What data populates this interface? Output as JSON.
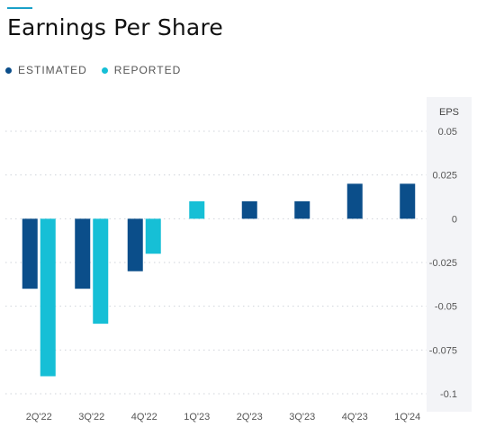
{
  "header": {
    "title": "Earnings Per Share"
  },
  "legend": {
    "items": [
      {
        "label": "ESTIMATED",
        "color": "#0b4e8a"
      },
      {
        "label": "REPORTED",
        "color": "#16bfd6"
      }
    ]
  },
  "colors": {
    "estimated": "#0b4e8a",
    "reported": "#16bfd6",
    "accent": "#1aa0c8"
  },
  "chart_data": {
    "type": "bar",
    "title": "Earnings Per Share",
    "xlabel": "",
    "ylabel": "EPS",
    "ylim": [
      -0.1,
      0.05
    ],
    "yticks": [
      0.05,
      0.025,
      0,
      -0.025,
      -0.05,
      -0.075,
      -0.1
    ],
    "ytick_labels": [
      "0.05",
      "0.025",
      "0",
      "-0.025",
      "-0.05",
      "-0.075",
      "-0.1"
    ],
    "categories": [
      "2Q'22",
      "3Q'22",
      "4Q'22",
      "1Q'23",
      "2Q'23",
      "3Q'23",
      "4Q'23",
      "1Q'24"
    ],
    "series": [
      {
        "name": "ESTIMATED",
        "values": [
          -0.04,
          -0.04,
          -0.03,
          null,
          0.01,
          0.01,
          0.02,
          0.02
        ]
      },
      {
        "name": "REPORTED",
        "values": [
          -0.09,
          -0.06,
          -0.02,
          0.01,
          null,
          null,
          null,
          null
        ]
      }
    ],
    "grid": true,
    "legend_position": "top-left"
  }
}
